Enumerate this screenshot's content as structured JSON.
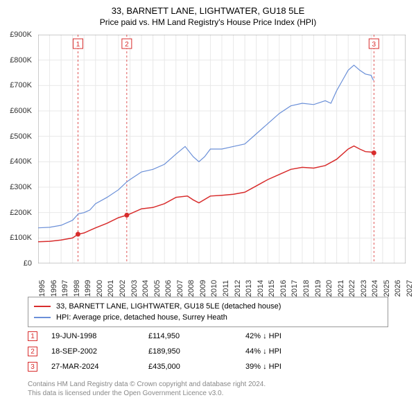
{
  "title": {
    "line1": "33, BARNETT LANE, LIGHTWATER, GU18 5LE",
    "line2": "Price paid vs. HM Land Registry's House Price Index (HPI)"
  },
  "chart": {
    "type": "line",
    "background_color": "#ffffff",
    "grid_color": "#e8e8e8",
    "axis_color": "#999999",
    "x": {
      "min": 1995,
      "max": 2027,
      "ticks": [
        1995,
        1996,
        1997,
        1998,
        1999,
        2000,
        2001,
        2002,
        2003,
        2004,
        2005,
        2006,
        2007,
        2008,
        2009,
        2010,
        2011,
        2012,
        2013,
        2014,
        2015,
        2016,
        2017,
        2018,
        2019,
        2020,
        2021,
        2022,
        2023,
        2024,
        2025,
        2026,
        2027
      ]
    },
    "y": {
      "min": 0,
      "max": 900000,
      "ticks": [
        0,
        100000,
        200000,
        300000,
        400000,
        500000,
        600000,
        700000,
        800000,
        900000
      ],
      "tick_labels": [
        "£0",
        "£100K",
        "£200K",
        "£300K",
        "£400K",
        "£500K",
        "£600K",
        "£700K",
        "£800K",
        "£900K"
      ]
    },
    "series": [
      {
        "name": "hpi",
        "color": "#6a8fd8",
        "width": 1.2,
        "points": [
          [
            1995,
            140000
          ],
          [
            1996,
            142000
          ],
          [
            1997,
            150000
          ],
          [
            1998,
            170000
          ],
          [
            1998.5,
            195000
          ],
          [
            1999,
            200000
          ],
          [
            1999.5,
            210000
          ],
          [
            2000,
            235000
          ],
          [
            2001,
            260000
          ],
          [
            2002,
            290000
          ],
          [
            2002.7,
            320000
          ],
          [
            2003,
            330000
          ],
          [
            2004,
            360000
          ],
          [
            2005,
            370000
          ],
          [
            2006,
            390000
          ],
          [
            2007,
            430000
          ],
          [
            2007.8,
            460000
          ],
          [
            2008.5,
            420000
          ],
          [
            2009,
            400000
          ],
          [
            2009.5,
            420000
          ],
          [
            2010,
            450000
          ],
          [
            2011,
            450000
          ],
          [
            2012,
            460000
          ],
          [
            2013,
            470000
          ],
          [
            2014,
            510000
          ],
          [
            2015,
            550000
          ],
          [
            2016,
            590000
          ],
          [
            2017,
            620000
          ],
          [
            2018,
            630000
          ],
          [
            2019,
            625000
          ],
          [
            2020,
            640000
          ],
          [
            2020.5,
            630000
          ],
          [
            2021,
            680000
          ],
          [
            2021.5,
            720000
          ],
          [
            2022,
            760000
          ],
          [
            2022.5,
            780000
          ],
          [
            2023,
            760000
          ],
          [
            2023.5,
            745000
          ],
          [
            2024,
            740000
          ],
          [
            2024.2,
            720000
          ]
        ]
      },
      {
        "name": "property",
        "color": "#d82c2c",
        "width": 1.5,
        "points": [
          [
            1995,
            85000
          ],
          [
            1996,
            87000
          ],
          [
            1997,
            92000
          ],
          [
            1998,
            100000
          ],
          [
            1998.47,
            114950
          ],
          [
            1999,
            120000
          ],
          [
            2000,
            140000
          ],
          [
            2001,
            158000
          ],
          [
            2002,
            180000
          ],
          [
            2002.72,
            189950
          ],
          [
            2003,
            195000
          ],
          [
            2004,
            215000
          ],
          [
            2005,
            220000
          ],
          [
            2006,
            235000
          ],
          [
            2007,
            260000
          ],
          [
            2008,
            265000
          ],
          [
            2008.5,
            250000
          ],
          [
            2009,
            238000
          ],
          [
            2010,
            265000
          ],
          [
            2011,
            268000
          ],
          [
            2012,
            272000
          ],
          [
            2013,
            280000
          ],
          [
            2014,
            305000
          ],
          [
            2015,
            330000
          ],
          [
            2016,
            350000
          ],
          [
            2017,
            370000
          ],
          [
            2018,
            378000
          ],
          [
            2019,
            375000
          ],
          [
            2020,
            385000
          ],
          [
            2021,
            410000
          ],
          [
            2022,
            450000
          ],
          [
            2022.5,
            462000
          ],
          [
            2023,
            450000
          ],
          [
            2023.5,
            440000
          ],
          [
            2024,
            438000
          ],
          [
            2024.24,
            435000
          ]
        ]
      }
    ],
    "markers": [
      {
        "num": "1",
        "x": 1998.47,
        "y": 114950,
        "color": "#d82c2c",
        "line_color": "#d82c2c"
      },
      {
        "num": "2",
        "x": 2002.72,
        "y": 189950,
        "color": "#d82c2c",
        "line_color": "#d82c2c"
      },
      {
        "num": "3",
        "x": 2024.24,
        "y": 435000,
        "color": "#d82c2c",
        "line_color": "#d82c2c"
      }
    ]
  },
  "legend": {
    "items": [
      {
        "color": "#d82c2c",
        "label": "33, BARNETT LANE, LIGHTWATER, GU18 5LE (detached house)"
      },
      {
        "color": "#6a8fd8",
        "label": "HPI: Average price, detached house, Surrey Heath"
      }
    ]
  },
  "marker_table": [
    {
      "num": "1",
      "color": "#d82c2c",
      "date": "19-JUN-1998",
      "price": "£114,950",
      "diff": "42% ↓ HPI"
    },
    {
      "num": "2",
      "color": "#d82c2c",
      "date": "18-SEP-2002",
      "price": "£189,950",
      "diff": "44% ↓ HPI"
    },
    {
      "num": "3",
      "color": "#d82c2c",
      "date": "27-MAR-2024",
      "price": "£435,000",
      "diff": "39% ↓ HPI"
    }
  ],
  "footer": {
    "line1": "Contains HM Land Registry data © Crown copyright and database right 2024.",
    "line2": "This data is licensed under the Open Government Licence v3.0."
  }
}
